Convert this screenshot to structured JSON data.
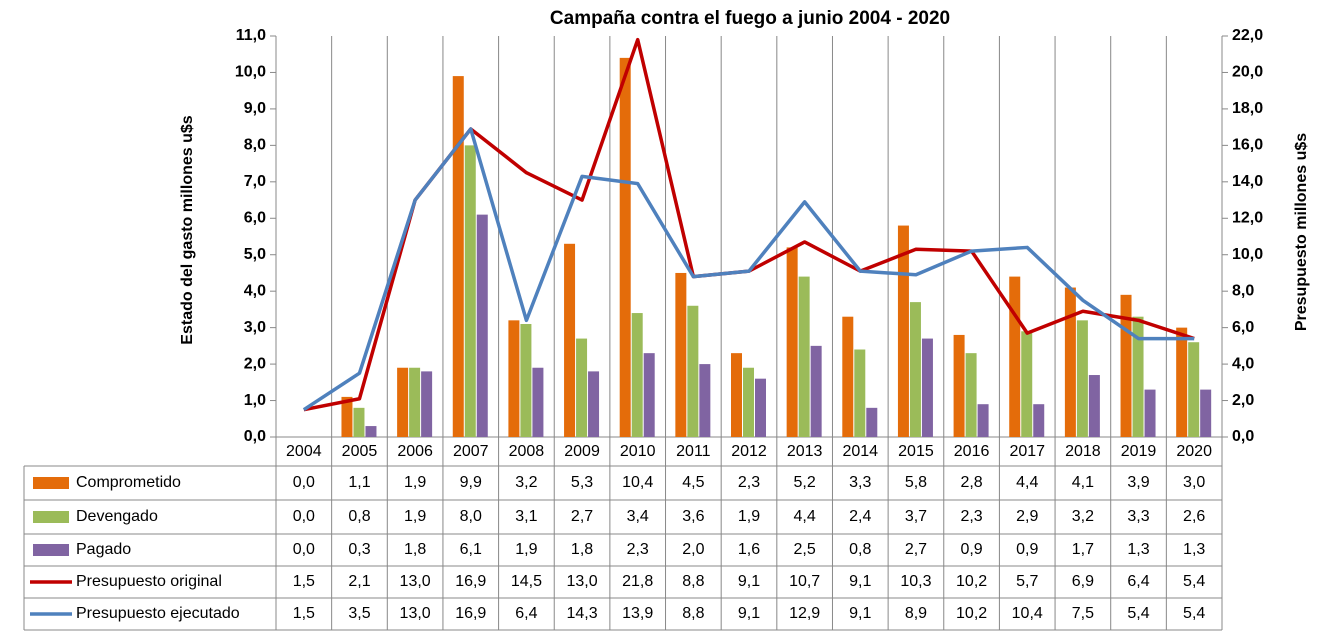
{
  "chart_data": {
    "type": "bar",
    "title": "Campaña contra el fuego a junio 2004 - 2020",
    "ylabel": "Estado del gasto millones u$s",
    "y2label": "Presupuesto millones u$s",
    "categories": [
      "2004",
      "2005",
      "2006",
      "2007",
      "2008",
      "2009",
      "2010",
      "2011",
      "2012",
      "2013",
      "2014",
      "2015",
      "2016",
      "2017",
      "2018",
      "2019",
      "2020"
    ],
    "ylim": [
      0,
      11
    ],
    "yticks": [
      {
        "value": 0,
        "label": "0,0"
      },
      {
        "value": 1,
        "label": "1,0"
      },
      {
        "value": 2,
        "label": "2,0"
      },
      {
        "value": 3,
        "label": "3,0"
      },
      {
        "value": 4,
        "label": "4,0"
      },
      {
        "value": 5,
        "label": "5,0"
      },
      {
        "value": 6,
        "label": "6,0"
      },
      {
        "value": 7,
        "label": "7,0"
      },
      {
        "value": 8,
        "label": "8,0"
      },
      {
        "value": 9,
        "label": "9,0"
      },
      {
        "value": 10,
        "label": "10,0"
      },
      {
        "value": 11,
        "label": "11,0"
      }
    ],
    "y2lim": [
      0,
      22
    ],
    "y2ticks": [
      {
        "value": 0,
        "label": "0,0"
      },
      {
        "value": 2,
        "label": "2,0"
      },
      {
        "value": 4,
        "label": "4,0"
      },
      {
        "value": 6,
        "label": "6,0"
      },
      {
        "value": 8,
        "label": "8,0"
      },
      {
        "value": 10,
        "label": "10,0"
      },
      {
        "value": 12,
        "label": "12,0"
      },
      {
        "value": 14,
        "label": "14,0"
      },
      {
        "value": 16,
        "label": "16,0"
      },
      {
        "value": 18,
        "label": "18,0"
      },
      {
        "value": 20,
        "label": "20,0"
      },
      {
        "value": 22,
        "label": "22,0"
      }
    ],
    "series": [
      {
        "name": "Comprometido",
        "color": "#e46c0a",
        "type": "bar",
        "values": [
          0.0,
          1.1,
          1.9,
          9.9,
          3.2,
          5.3,
          10.4,
          4.5,
          2.3,
          5.2,
          3.3,
          5.8,
          2.8,
          4.4,
          4.1,
          3.9,
          3.0
        ],
        "value_labels": [
          "0,0",
          "1,1",
          "1,9",
          "9,9",
          "3,2",
          "5,3",
          "10,4",
          "4,5",
          "2,3",
          "5,2",
          "3,3",
          "5,8",
          "2,8",
          "4,4",
          "4,1",
          "3,9",
          "3,0"
        ]
      },
      {
        "name": "Devengado",
        "color": "#9bbb59",
        "type": "bar",
        "values": [
          0.0,
          0.8,
          1.9,
          8.0,
          3.1,
          2.7,
          3.4,
          3.6,
          1.9,
          4.4,
          2.4,
          3.7,
          2.3,
          2.9,
          3.2,
          3.3,
          2.6
        ],
        "value_labels": [
          "0,0",
          "0,8",
          "1,9",
          "8,0",
          "3,1",
          "2,7",
          "3,4",
          "3,6",
          "1,9",
          "4,4",
          "2,4",
          "3,7",
          "2,3",
          "2,9",
          "3,2",
          "3,3",
          "2,6"
        ]
      },
      {
        "name": "Pagado",
        "color": "#8064a2",
        "type": "bar",
        "values": [
          0.0,
          0.3,
          1.8,
          6.1,
          1.9,
          1.8,
          2.3,
          2.0,
          1.6,
          2.5,
          0.8,
          2.7,
          0.9,
          0.9,
          1.7,
          1.3,
          1.3
        ],
        "value_labels": [
          "0,0",
          "0,3",
          "1,8",
          "6,1",
          "1,9",
          "1,8",
          "2,3",
          "2,0",
          "1,6",
          "2,5",
          "0,8",
          "2,7",
          "0,9",
          "0,9",
          "1,7",
          "1,3",
          "1,3"
        ]
      },
      {
        "name": "Presupuesto original",
        "color": "#c00000",
        "type": "line",
        "axis": "y2",
        "values": [
          1.5,
          2.1,
          13.0,
          16.9,
          14.5,
          13.0,
          21.8,
          8.8,
          9.1,
          10.7,
          9.1,
          10.3,
          10.2,
          5.7,
          6.9,
          6.4,
          5.4
        ],
        "value_labels": [
          "1,5",
          "2,1",
          "13,0",
          "16,9",
          "14,5",
          "13,0",
          "21,8",
          "8,8",
          "9,1",
          "10,7",
          "9,1",
          "10,3",
          "10,2",
          "5,7",
          "6,9",
          "6,4",
          "5,4"
        ]
      },
      {
        "name": "Presupuesto ejecutado",
        "color": "#4f81bd",
        "type": "line",
        "axis": "y2",
        "values": [
          1.5,
          3.5,
          13.0,
          16.9,
          6.4,
          14.3,
          13.9,
          8.8,
          9.1,
          12.9,
          9.1,
          8.9,
          10.2,
          10.4,
          7.5,
          5.4,
          5.4
        ],
        "value_labels": [
          "1,5",
          "3,5",
          "13,0",
          "16,9",
          "6,4",
          "14,3",
          "13,9",
          "8,8",
          "9,1",
          "12,9",
          "9,1",
          "8,9",
          "10,2",
          "10,4",
          "7,5",
          "5,4",
          "5,4"
        ]
      }
    ]
  }
}
